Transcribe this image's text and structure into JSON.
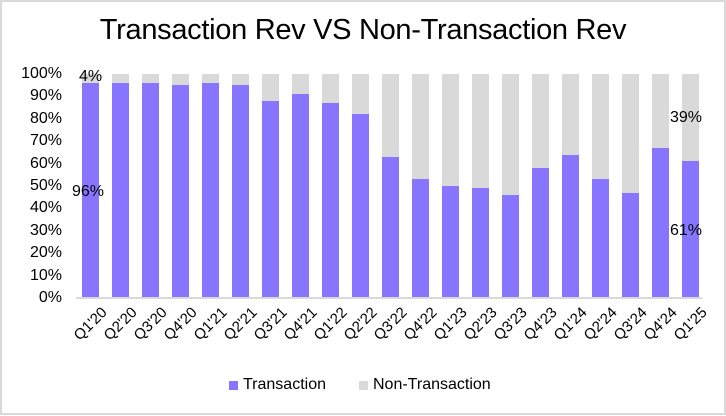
{
  "chart_data": {
    "type": "bar",
    "stacked": true,
    "percent_stacked": true,
    "title": "Transaction Rev VS Non-Transaction Rev",
    "xlabel": "",
    "ylabel": "",
    "ylim": [
      0,
      100
    ],
    "yticks": [
      "0%",
      "10%",
      "20%",
      "30%",
      "40%",
      "50%",
      "60%",
      "70%",
      "80%",
      "90%",
      "100%"
    ],
    "grid": false,
    "legend_position": "bottom",
    "categories": [
      "Q1'20",
      "Q2'20",
      "Q3'20",
      "Q4'20",
      "Q1'21",
      "Q2'21",
      "Q3'21",
      "Q4'21",
      "Q1'22",
      "Q2'22",
      "Q3'22",
      "Q4'22",
      "Q1'23",
      "Q2'23",
      "Q3'23",
      "Q4'23",
      "Q1'24",
      "Q2'24",
      "Q3'24",
      "Q4'24",
      "Q1'25"
    ],
    "series": [
      {
        "name": "Transaction",
        "color": "#8875ff",
        "values": [
          96,
          96,
          96,
          95,
          96,
          95,
          88,
          91,
          87,
          82,
          63,
          53,
          50,
          49,
          46,
          58,
          64,
          53,
          47,
          67,
          61
        ]
      },
      {
        "name": "Non-Transaction",
        "color": "#d9d9d9",
        "values": [
          4,
          4,
          4,
          5,
          4,
          5,
          12,
          9,
          13,
          18,
          37,
          47,
          50,
          51,
          54,
          42,
          36,
          47,
          53,
          33,
          39
        ]
      }
    ],
    "annotations": [
      {
        "category": "Q1'20",
        "series": "Non-Transaction",
        "text": "4%"
      },
      {
        "category": "Q1'20",
        "series": "Transaction",
        "text": "96%"
      },
      {
        "category": "Q1'25",
        "series": "Non-Transaction",
        "text": "39%"
      },
      {
        "category": "Q1'25",
        "series": "Transaction",
        "text": "61%"
      }
    ]
  },
  "legend": {
    "items": [
      {
        "label": "Transaction",
        "color": "#8875ff"
      },
      {
        "label": "Non-Transaction",
        "color": "#d9d9d9"
      }
    ]
  }
}
